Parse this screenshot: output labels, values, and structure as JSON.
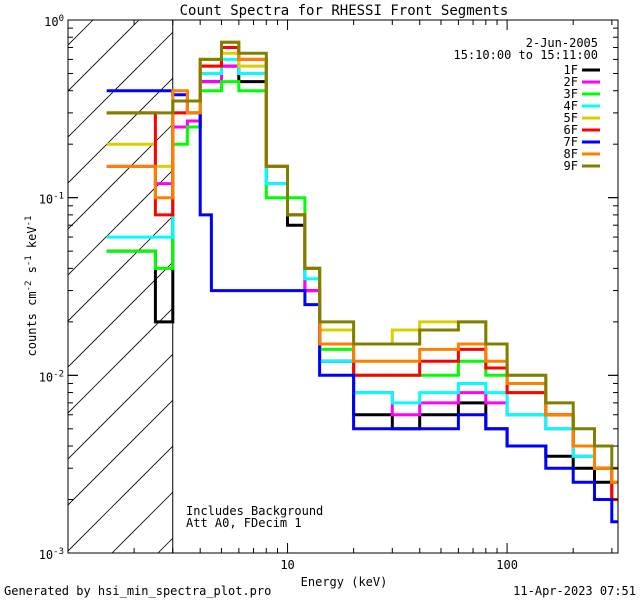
{
  "chart_data": {
    "type": "line",
    "title": "Count Spectra for RHESSI Front Segments",
    "xlabel": "Energy (keV)",
    "ylabel_parts": [
      "counts cm",
      "-2",
      " s",
      "-1",
      " keV",
      "-1"
    ],
    "xscale": "log",
    "yscale": "log",
    "xlim": [
      1,
      320
    ],
    "ylim": [
      0.001,
      1
    ],
    "x_ticks": [
      {
        "value": 10,
        "label": "10"
      },
      {
        "value": 100,
        "label": "100"
      }
    ],
    "y_ticks": [
      {
        "value": 1,
        "base": "10",
        "exp": "0"
      },
      {
        "value": 0.1,
        "base": "10",
        "exp": "-1"
      },
      {
        "value": 0.01,
        "base": "10",
        "exp": "-2"
      },
      {
        "value": 0.001,
        "base": "10",
        "exp": "-3"
      }
    ],
    "attenuated_region_max_kev": 3,
    "info": {
      "date": "2-Jun-2005",
      "time_range": "15:10:00 to 15:11:00"
    },
    "annotation": {
      "line1": "Includes Background",
      "line2": "Att A0, FDecim 1"
    },
    "legend_position": "top-right",
    "series": [
      {
        "name": "1F",
        "color": "#000000",
        "x": [
          1.5,
          2.5,
          3,
          3.5,
          4,
          5,
          6,
          8,
          10,
          12,
          14,
          20,
          30,
          40,
          60,
          80,
          100,
          150,
          200,
          250,
          300
        ],
        "values": [
          0.05,
          0.02,
          0.25,
          0.25,
          0.45,
          0.55,
          0.45,
          0.15,
          0.07,
          0.03,
          0.012,
          0.006,
          0.005,
          0.006,
          0.007,
          0.005,
          0.004,
          0.0035,
          0.003,
          0.0025,
          0.002
        ]
      },
      {
        "name": "2F",
        "color": "#ff00ff",
        "x": [
          1.5,
          2.5,
          3,
          3.5,
          4,
          5,
          6,
          8,
          10,
          12,
          14,
          20,
          30,
          40,
          60,
          80,
          100,
          150,
          200,
          250,
          300
        ],
        "values": [
          0.15,
          0.12,
          0.25,
          0.27,
          0.45,
          0.55,
          0.5,
          0.12,
          0.08,
          0.03,
          0.012,
          0.008,
          0.006,
          0.007,
          0.008,
          0.007,
          0.006,
          0.005,
          0.0035,
          0.003,
          0.0025
        ]
      },
      {
        "name": "3F",
        "color": "#00ff00",
        "x": [
          1.5,
          2.5,
          3,
          3.5,
          4,
          5,
          6,
          8,
          10,
          12,
          14,
          20,
          30,
          40,
          60,
          80,
          100,
          150,
          200,
          250,
          300
        ],
        "values": [
          0.05,
          0.04,
          0.2,
          0.25,
          0.4,
          0.45,
          0.4,
          0.1,
          0.1,
          0.04,
          0.014,
          0.01,
          0.01,
          0.01,
          0.012,
          0.01,
          0.008,
          0.006,
          0.004,
          0.003,
          0.0025
        ]
      },
      {
        "name": "4F",
        "color": "#00ffff",
        "x": [
          1.5,
          2.5,
          3,
          3.5,
          4,
          5,
          6,
          8,
          10,
          12,
          14,
          20,
          30,
          40,
          60,
          80,
          100,
          150,
          200,
          250,
          300
        ],
        "values": [
          0.06,
          0.06,
          0.3,
          0.3,
          0.5,
          0.6,
          0.5,
          0.12,
          0.08,
          0.035,
          0.012,
          0.008,
          0.007,
          0.008,
          0.009,
          0.008,
          0.006,
          0.005,
          0.0035,
          0.003,
          0.0025
        ]
      },
      {
        "name": "5F",
        "color": "#d8d000",
        "x": [
          1.5,
          2.5,
          3,
          3.5,
          4,
          5,
          6,
          8,
          10,
          12,
          14,
          20,
          30,
          40,
          60,
          80,
          100,
          150,
          200,
          250,
          300
        ],
        "values": [
          0.2,
          0.15,
          0.3,
          0.3,
          0.55,
          0.65,
          0.55,
          0.15,
          0.08,
          0.04,
          0.018,
          0.015,
          0.018,
          0.02,
          0.02,
          0.015,
          0.01,
          0.006,
          0.004,
          0.003,
          0.0025
        ]
      },
      {
        "name": "6F",
        "color": "#ff0000",
        "x": [
          1.5,
          2.5,
          3,
          3.5,
          4,
          5,
          6,
          8,
          10,
          12,
          14,
          20,
          30,
          40,
          60,
          80,
          100,
          150,
          200,
          250,
          300
        ],
        "values": [
          0.3,
          0.08,
          0.3,
          0.35,
          0.55,
          0.7,
          0.6,
          0.15,
          0.08,
          0.04,
          0.015,
          0.01,
          0.01,
          0.012,
          0.014,
          0.011,
          0.008,
          0.006,
          0.004,
          0.003,
          0.002
        ]
      },
      {
        "name": "7F",
        "color": "#0000ff",
        "x": [
          1.5,
          2,
          2.5,
          3,
          3.5,
          4,
          4.5,
          5,
          6,
          8,
          10,
          12,
          14,
          20,
          30,
          40,
          60,
          80,
          100,
          150,
          200,
          250,
          300
        ],
        "values": [
          0.4,
          0.4,
          0.4,
          0.38,
          0.3,
          0.08,
          0.03,
          0.03,
          0.03,
          0.03,
          0.03,
          0.025,
          0.01,
          0.005,
          0.005,
          0.005,
          0.006,
          0.005,
          0.004,
          0.003,
          0.0025,
          0.002,
          0.0015
        ]
      },
      {
        "name": "8F",
        "color": "#ff8000",
        "x": [
          1.5,
          2.5,
          3,
          3.5,
          4,
          5,
          6,
          8,
          10,
          12,
          14,
          20,
          30,
          40,
          60,
          80,
          100,
          150,
          200,
          250,
          300
        ],
        "values": [
          0.15,
          0.1,
          0.4,
          0.3,
          0.6,
          0.75,
          0.6,
          0.15,
          0.08,
          0.04,
          0.015,
          0.012,
          0.012,
          0.014,
          0.015,
          0.012,
          0.009,
          0.006,
          0.004,
          0.003,
          0.0025
        ]
      },
      {
        "name": "9F",
        "color": "#808000",
        "x": [
          1.5,
          2.5,
          3,
          3.5,
          4,
          5,
          6,
          8,
          10,
          12,
          14,
          20,
          30,
          40,
          60,
          80,
          100,
          150,
          200,
          250,
          300
        ],
        "values": [
          0.3,
          0.3,
          0.35,
          0.35,
          0.6,
          0.75,
          0.65,
          0.15,
          0.08,
          0.04,
          0.02,
          0.015,
          0.015,
          0.018,
          0.02,
          0.015,
          0.01,
          0.007,
          0.005,
          0.004,
          0.003
        ]
      }
    ]
  },
  "footer": {
    "generated_by": "Generated by hsi_min_spectra_plot.pro",
    "timestamp": "11-Apr-2023 07:51"
  }
}
